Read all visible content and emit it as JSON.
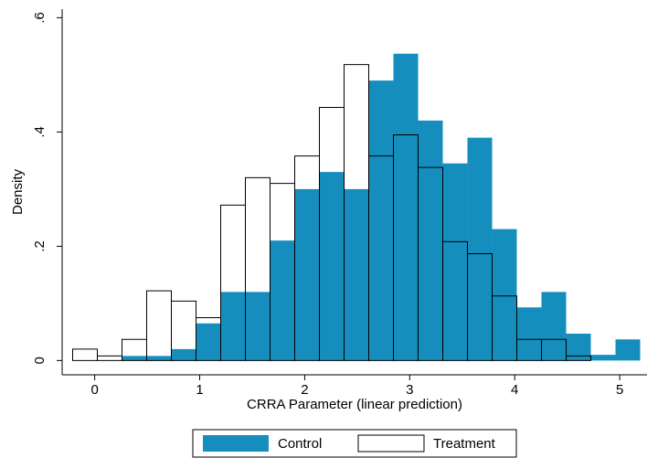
{
  "chart_data": {
    "type": "histogram",
    "x_label": "CRRA Parameter (linear prediction)",
    "y_label": "Density",
    "bins": [
      -0.21,
      0.025,
      0.26,
      0.495,
      0.73,
      0.965,
      1.2,
      1.435,
      1.67,
      1.905,
      2.14,
      2.375,
      2.61,
      2.845,
      3.08,
      3.315,
      3.55,
      3.785,
      4.02,
      4.255,
      4.49,
      4.725,
      4.96,
      5.195
    ],
    "series": [
      {
        "name": "Control",
        "color": "#168ebd",
        "fill": true,
        "values": [
          0,
          0,
          0.008,
          0.008,
          0.02,
          0.065,
          0.12,
          0.12,
          0.21,
          0.3,
          0.33,
          0.3,
          0.49,
          0.537,
          0.42,
          0.345,
          0.39,
          0.23,
          0.093,
          0.12,
          0.047,
          0.01,
          0.037
        ]
      },
      {
        "name": "Treatment",
        "color": "#000000",
        "fill": false,
        "values": [
          0.02,
          0.008,
          0.037,
          0.122,
          0.104,
          0.075,
          0.272,
          0.32,
          0.31,
          0.358,
          0.443,
          0.518,
          0.358,
          0.395,
          0.338,
          0.208,
          0.187,
          0.113,
          0.037,
          0.037,
          0.008,
          0,
          0
        ]
      }
    ],
    "xlim": [
      -0.31,
      5.26
    ],
    "ylim": [
      -0.025,
      0.615
    ],
    "xticks": [
      0,
      1,
      2,
      3,
      4,
      5
    ],
    "yticks": [
      0,
      {
        "value": 0.2,
        "label": ".2"
      },
      {
        "value": 0.4,
        "label": ".4"
      },
      {
        "value": 0.6,
        "label": ".6"
      }
    ],
    "legend": "bottom"
  }
}
